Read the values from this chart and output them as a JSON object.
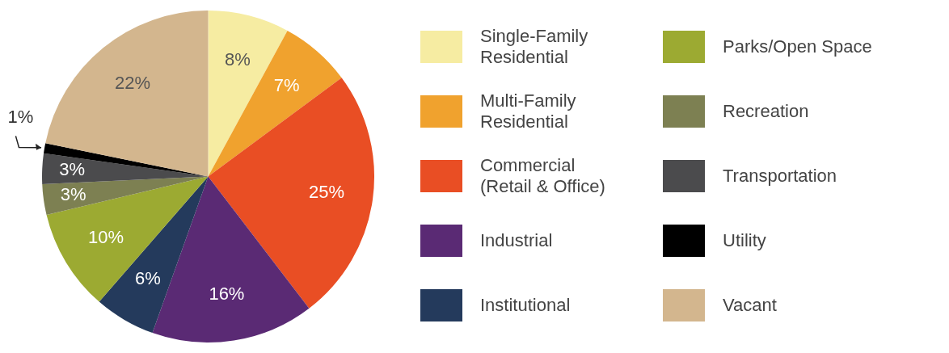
{
  "chart_data": {
    "type": "pie",
    "categories": [
      "Single-Family Residential",
      "Multi-Family Residential",
      "Commercial (Retail & Office)",
      "Industrial",
      "Institutional",
      "Parks/Open Space",
      "Recreation",
      "Transportation",
      "Utility",
      "Vacant"
    ],
    "values": [
      8,
      7,
      25,
      16,
      6,
      10,
      3,
      3,
      1,
      22
    ],
    "value_labels": [
      "8%",
      "7%",
      "25%",
      "16%",
      "6%",
      "10%",
      "3%",
      "3%",
      "1%",
      "22%"
    ],
    "colors": [
      "#f6eca2",
      "#f0a22e",
      "#e94e24",
      "#5a2a74",
      "#243a5c",
      "#9caa32",
      "#7d8052",
      "#4b4b4d",
      "#000000",
      "#d3b68e"
    ],
    "legend": "right"
  }
}
